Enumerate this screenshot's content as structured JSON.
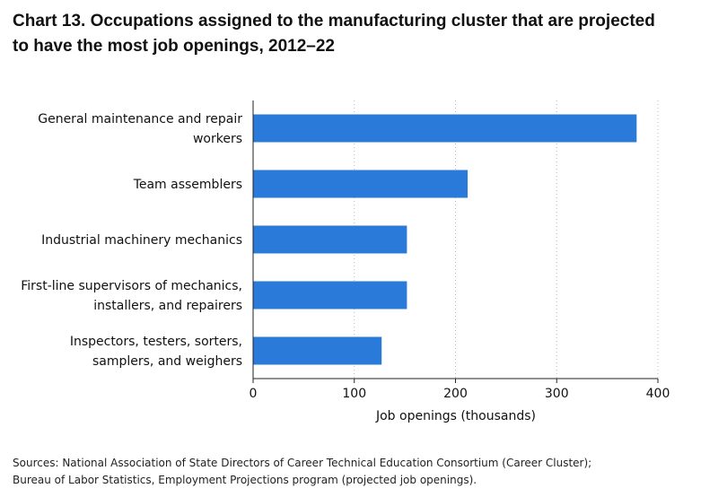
{
  "title_lines": [
    "Chart 13. Occupations assigned to the manufacturing cluster that are projected",
    "to have the most job openings, 2012–22"
  ],
  "source_lines": [
    "Sources: National Association of State Directors of Career Technical Education Consortium (Career Cluster);",
    "Bureau of Labor Statistics, Employment Projections program (projected job openings)."
  ],
  "chart_data": {
    "type": "bar",
    "orientation": "horizontal",
    "title": "Chart 13. Occupations assigned to the manufacturing cluster that are projected to have the most job openings, 2012–22",
    "categories": [
      [
        "General maintenance and repair",
        "workers"
      ],
      [
        "Team assemblers"
      ],
      [
        "Industrial machinery mechanics"
      ],
      [
        "First-line supervisors of mechanics,",
        "installers, and repairers"
      ],
      [
        "Inspectors, testers, sorters,",
        "samplers, and weighers"
      ]
    ],
    "values": [
      379,
      212,
      152,
      152,
      127
    ],
    "xlabel": "Job openings (thousands)",
    "ylabel": "",
    "xlim": [
      0,
      400
    ],
    "xticks": [
      0,
      100,
      200,
      300,
      400
    ],
    "grid": "vertical dotted",
    "bar_color": "#2a7ad9",
    "legend": "none"
  }
}
